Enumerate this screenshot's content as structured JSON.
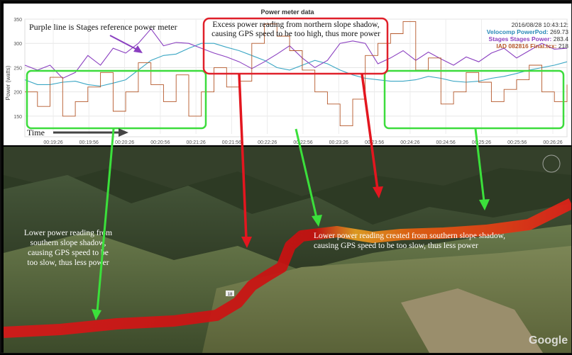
{
  "chart_data": {
    "type": "line",
    "title": "Power meter data",
    "ylabel": "Power (watts)",
    "xlabel": "",
    "ylim": [
      125,
      350
    ],
    "yticks": [
      150,
      200,
      250,
      300,
      350
    ],
    "xticks": [
      "00:19:26",
      "00:19:56",
      "00:20:26",
      "00:20:56",
      "00:21:26",
      "00:21:56",
      "00:22:26",
      "00:22:56",
      "00:23:26",
      "00:23:56",
      "00:24:26",
      "00:24:56",
      "00:25:26",
      "00:25:56",
      "00:26:26"
    ],
    "x": [
      0,
      10,
      20,
      30,
      40,
      50,
      60,
      70,
      80,
      90,
      100,
      110,
      120,
      130,
      140,
      150,
      160,
      170,
      180,
      190,
      200,
      210,
      220,
      230,
      240,
      250,
      260,
      270,
      280,
      290,
      300,
      310,
      320,
      330,
      340,
      350,
      360,
      370,
      380,
      390,
      400,
      410,
      420,
      430
    ],
    "series": [
      {
        "name": "Velocomp PowerPod",
        "color": "#3aa6c4",
        "values": [
          225,
          215,
          215,
          220,
          222,
          215,
          212,
          218,
          225,
          245,
          265,
          275,
          278,
          290,
          300,
          300,
          292,
          285,
          275,
          265,
          250,
          245,
          255,
          265,
          258,
          245,
          235,
          228,
          225,
          222,
          222,
          225,
          232,
          228,
          222,
          220,
          222,
          228,
          232,
          238,
          245,
          250,
          255,
          262
        ]
      },
      {
        "name": "Stages Stages Power",
        "color": "#8a3fc0",
        "values": [
          255,
          245,
          255,
          228,
          240,
          275,
          255,
          290,
          280,
          300,
          330,
          295,
          302,
          300,
          290,
          280,
          272,
          262,
          248,
          262,
          278,
          295,
          270,
          250,
          265,
          300,
          305,
          300,
          258,
          270,
          285,
          265,
          282,
          268,
          255,
          272,
          262,
          280,
          290,
          270,
          285,
          300,
          288,
          290
        ]
      },
      {
        "name": "IAD 082816 Final.tcx",
        "color": "#b5582a",
        "values": [
          200,
          170,
          230,
          150,
          180,
          210,
          240,
          160,
          200,
          260,
          215,
          180,
          235,
          150,
          200,
          250,
          210,
          222,
          300,
          340,
          315,
          285,
          245,
          200,
          175,
          130,
          185,
          275,
          300,
          320,
          345,
          245,
          270,
          175,
          200,
          240,
          220,
          180,
          205,
          225,
          255,
          200,
          180,
          215
        ]
      }
    ],
    "legend": {
      "timestamp": "2016/08/28 10:43:12:",
      "entries": [
        {
          "label": "Velocomp PowerPod:",
          "value": "269.73",
          "color": "#2a8ab8"
        },
        {
          "label": "Stages Stages Power:",
          "value": "283.4",
          "color": "#8a3fc0"
        },
        {
          "label": "IAD 082816 Final.tcx:",
          "value": "218",
          "color": "#b5582a"
        }
      ]
    },
    "annotations": {
      "purple": "Purple line is Stages reference power meter",
      "excess": "Excess power reading from northern slope shadow, causing GPS speed to be too high, thus more power",
      "time": "Time"
    }
  },
  "map": {
    "left_text": "Lower power reading from southern slope shadow, causing GPS speed to be too slow, thus less power",
    "right_text": "Lower power reading created from southern slope shadow, causing GPS speed to be too slow, thus less power",
    "logo": "Google",
    "road_sign": "18"
  },
  "colors": {
    "green_box": "#3ddc3d",
    "red_box": "#e0202a",
    "green_arrow": "#3be03b",
    "red_arrow": "#e3161f"
  }
}
